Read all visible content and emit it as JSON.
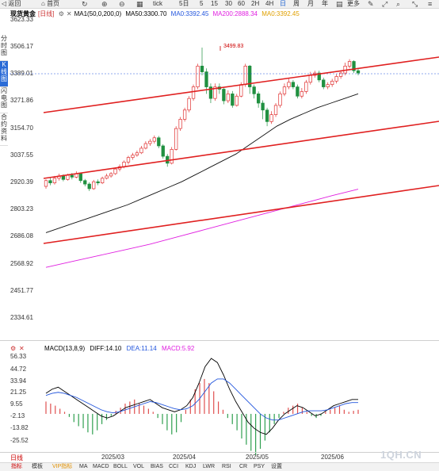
{
  "toolbar": {
    "back": "返回",
    "home": "首页",
    "tick": "tick",
    "periods": [
      "5日",
      "5",
      "15",
      "30",
      "60",
      "2H",
      "4H",
      "日",
      "周",
      "月",
      "年"
    ],
    "more": "更多"
  },
  "side_tabs": [
    "分时图",
    "K线图",
    "闪电图",
    "合约资料"
  ],
  "legend": {
    "title": "现货黄金",
    "period": "[日线]",
    "ma_label": "MA1(50,0,200,0)",
    "ma50": "MA50:3300.70",
    "ma0_a": "MA0:3392.45",
    "ma200": "MA200:2888.34",
    "ma0_b": "MA0:3392.45",
    "colors": {
      "ma50": "#000000",
      "ma0_a": "#2255dd",
      "ma200": "#e020e0",
      "ma0_b": "#e0a000"
    }
  },
  "y_axis_labels": [
    "3623.33",
    "3506.17",
    "3389.01",
    "3271.86",
    "3154.70",
    "3037.55",
    "2920.39",
    "2803.23",
    "2686.08",
    "2568.92",
    "2451.77",
    "2334.61"
  ],
  "high_marker": "3499.83",
  "macd": {
    "label": "MACD(13,8,9)",
    "diff": "DIFF:14.10",
    "dea": "DEA:11.14",
    "macd": "MACD:5.92",
    "colors": {
      "diff": "#000000",
      "dea": "#2255dd",
      "macd": "#e020e0"
    },
    "y_labels": [
      "56.33",
      "44.72",
      "33.94",
      "21.25",
      "9.55",
      "-2.13",
      "-13.82",
      "-25.52"
    ]
  },
  "x_labels": [
    "2025/03",
    "2025/04",
    "2025/05",
    "2025/06"
  ],
  "period_label": "日线",
  "indicator_tabs": [
    "指标",
    "模板",
    "VIP指标",
    "MA",
    "MACD",
    "BOLL",
    "VOL",
    "BIAS",
    "CCI",
    "KDJ",
    "LWR",
    "RSI",
    "CR",
    "PSY",
    "设置"
  ],
  "watermark": "1QH.CN",
  "chart_data": {
    "type": "candlestick",
    "title": "现货黄金",
    "ylim": [
      2300,
      3640
    ],
    "last_price": 3389.01,
    "high": 3499.83,
    "candles": [
      [
        2900,
        2925,
        2890,
        2930
      ],
      [
        2925,
        2915,
        2905,
        2938
      ],
      [
        2915,
        2935,
        2908,
        2945
      ],
      [
        2935,
        2945,
        2925,
        2955
      ],
      [
        2945,
        2930,
        2922,
        2952
      ],
      [
        2930,
        2948,
        2925,
        2955
      ],
      [
        2948,
        2940,
        2930,
        2958
      ],
      [
        2940,
        2955,
        2935,
        2965
      ],
      [
        2955,
        2925,
        2915,
        2960
      ],
      [
        2925,
        2910,
        2900,
        2932
      ],
      [
        2910,
        2890,
        2880,
        2918
      ],
      [
        2890,
        2920,
        2885,
        2928
      ],
      [
        2920,
        2915,
        2905,
        2930
      ],
      [
        2915,
        2935,
        2910,
        2942
      ],
      [
        2935,
        2945,
        2930,
        2955
      ],
      [
        2945,
        2955,
        2938,
        2962
      ],
      [
        2955,
        2975,
        2950,
        2982
      ],
      [
        2975,
        2985,
        2965,
        2995
      ],
      [
        2985,
        3005,
        2978,
        3012
      ],
      [
        3005,
        3025,
        2995,
        3032
      ],
      [
        3025,
        3035,
        3015,
        3045
      ],
      [
        3035,
        3045,
        3028,
        3055
      ],
      [
        3045,
        3065,
        3040,
        3075
      ],
      [
        3065,
        3085,
        3060,
        3095
      ],
      [
        3085,
        3095,
        3075,
        3105
      ],
      [
        3095,
        3110,
        3085,
        3120
      ],
      [
        3110,
        3075,
        3065,
        3118
      ],
      [
        3075,
        3030,
        3020,
        3082
      ],
      [
        3030,
        3000,
        2985,
        3040
      ],
      [
        3000,
        3060,
        2995,
        3070
      ],
      [
        3060,
        3150,
        3055,
        3160
      ],
      [
        3150,
        3190,
        3140,
        3200
      ],
      [
        3190,
        3230,
        3180,
        3240
      ],
      [
        3230,
        3280,
        3220,
        3290
      ],
      [
        3280,
        3330,
        3270,
        3340
      ],
      [
        3330,
        3420,
        3320,
        3430
      ],
      [
        3420,
        3395,
        3380,
        3500
      ],
      [
        3395,
        3330,
        3300,
        3410
      ],
      [
        3330,
        3280,
        3260,
        3345
      ],
      [
        3280,
        3330,
        3270,
        3345
      ],
      [
        3330,
        3320,
        3300,
        3345
      ],
      [
        3320,
        3270,
        3255,
        3330
      ],
      [
        3270,
        3300,
        3260,
        3315
      ],
      [
        3300,
        3250,
        3240,
        3312
      ],
      [
        3250,
        3290,
        3245,
        3300
      ],
      [
        3290,
        3340,
        3285,
        3350
      ],
      [
        3340,
        3420,
        3330,
        3430
      ],
      [
        3420,
        3330,
        3300,
        3425
      ],
      [
        3330,
        3300,
        3280,
        3340
      ],
      [
        3300,
        3260,
        3240,
        3310
      ],
      [
        3260,
        3230,
        3190,
        3272
      ],
      [
        3230,
        3180,
        3160,
        3240
      ],
      [
        3180,
        3210,
        3170,
        3225
      ],
      [
        3210,
        3250,
        3200,
        3260
      ],
      [
        3250,
        3300,
        3240,
        3310
      ],
      [
        3300,
        3330,
        3290,
        3345
      ],
      [
        3330,
        3350,
        3320,
        3365
      ],
      [
        3350,
        3330,
        3320,
        3360
      ],
      [
        3330,
        3290,
        3280,
        3340
      ],
      [
        3290,
        3310,
        3280,
        3325
      ],
      [
        3310,
        3350,
        3300,
        3360
      ],
      [
        3350,
        3380,
        3340,
        3395
      ],
      [
        3380,
        3390,
        3370,
        3400
      ],
      [
        3390,
        3360,
        3350,
        3400
      ],
      [
        3360,
        3330,
        3320,
        3370
      ],
      [
        3330,
        3340,
        3320,
        3350
      ],
      [
        3340,
        3355,
        3330,
        3365
      ],
      [
        3355,
        3375,
        3345,
        3385
      ],
      [
        3375,
        3390,
        3365,
        3400
      ],
      [
        3390,
        3420,
        3380,
        3435
      ],
      [
        3420,
        3440,
        3410,
        3450
      ],
      [
        3440,
        3400,
        3390,
        3445
      ],
      [
        3400,
        3390,
        3380,
        3410
      ]
    ],
    "ma50": [
      2700,
      2720,
      2740,
      2760,
      2780,
      2800,
      2820,
      2845,
      2870,
      2895,
      2920,
      2950,
      2980,
      3010,
      3040,
      3080,
      3120,
      3160,
      3190,
      3215,
      3240,
      3260,
      3280,
      3300
    ],
    "ma200": [
      2550,
      2575,
      2600,
      2625,
      2650,
      2680,
      2710,
      2740,
      2770,
      2800,
      2830,
      2860,
      2888
    ]
  }
}
